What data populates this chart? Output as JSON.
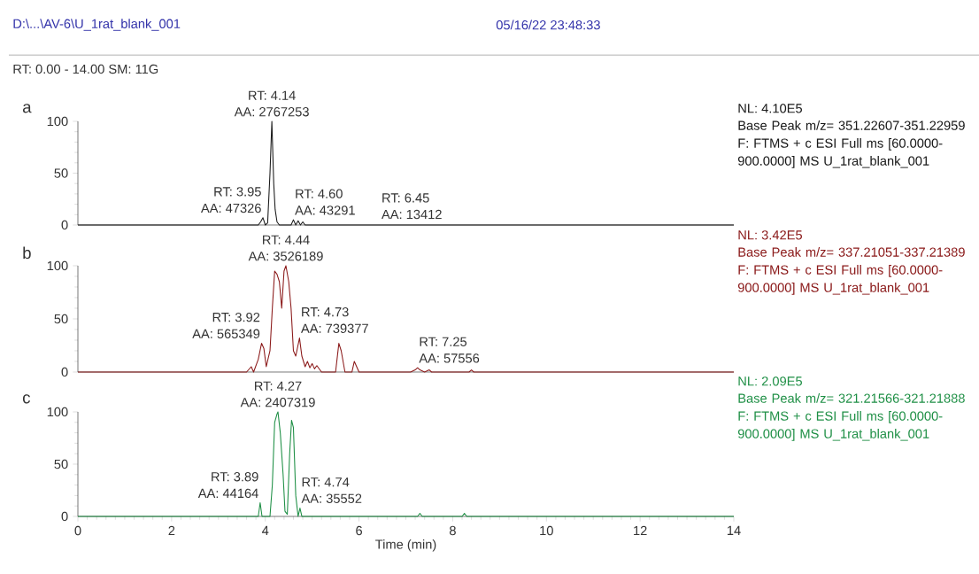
{
  "chart_data": [
    {
      "type": "line",
      "title": "a",
      "xlim": [
        0,
        14
      ],
      "ylim": [
        0,
        100
      ],
      "yticks": [
        0,
        50,
        100
      ],
      "tick_labels": "y",
      "series": [
        {
          "color": "#1a1a1a",
          "x": [
            0,
            3.85,
            3.9,
            3.95,
            4.0,
            4.05,
            4.1,
            4.14,
            4.18,
            4.21,
            4.25,
            4.3,
            4.55,
            4.6,
            4.65,
            4.7,
            4.75,
            4.8,
            4.85,
            14
          ],
          "values": [
            0,
            0,
            3,
            7,
            0,
            2,
            50,
            100,
            40,
            15,
            3,
            0,
            0,
            5,
            0,
            4,
            0,
            3,
            0,
            0
          ]
        }
      ],
      "annotations": [
        "D:\\...\\AV-6\\U_1rat_blank_001",
        "05/16/22 23:48:33",
        "RT:  0.00 - 14.00   SM:  11G",
        {
          "text": "RT: 3.95",
          "x": 3.95,
          "y": 7
        },
        {
          "text": "AA: 47326",
          "x": 3.95,
          "y": 7
        },
        {
          "text": "RT: 4.14",
          "x": 4.14,
          "y": 100
        },
        {
          "text": "AA: 2767253",
          "x": 4.14,
          "y": 100
        },
        {
          "text": "RT: 4.60",
          "x": 4.6,
          "y": 5
        },
        {
          "text": "AA: 43291",
          "x": 4.6,
          "y": 5
        },
        {
          "text": "RT: 6.45",
          "x": 6.45,
          "y": 1
        },
        {
          "text": "AA: 13412",
          "x": 6.45,
          "y": 1
        },
        "NL: 4.10E5",
        "Base Peak m/z= 351.22607-351.22959 F: FTMS + c ESI Full ms [60.0000-900.0000] MS U_1rat_blank_001"
      ]
    },
    {
      "type": "line",
      "title": "b",
      "xlim": [
        0,
        14
      ],
      "ylim": [
        0,
        100
      ],
      "yticks": [
        0,
        50,
        100
      ],
      "tick_labels": "y",
      "series": [
        {
          "color": "#8b1a1a",
          "x": [
            0,
            3.6,
            3.7,
            3.75,
            3.85,
            3.92,
            3.97,
            4.02,
            4.1,
            4.15,
            4.2,
            4.25,
            4.3,
            4.35,
            4.4,
            4.44,
            4.5,
            4.55,
            4.6,
            4.65,
            4.73,
            4.78,
            4.85,
            4.9,
            4.95,
            5.0,
            5.05,
            5.1,
            5.2,
            5.3,
            5.5,
            5.57,
            5.62,
            5.7,
            5.85,
            5.9,
            5.95,
            6.0,
            7.1,
            7.2,
            7.25,
            7.3,
            7.4,
            7.5,
            7.55,
            8.35,
            8.4,
            8.45,
            14
          ],
          "values": [
            0,
            0,
            5,
            0,
            12,
            27,
            22,
            5,
            20,
            60,
            95,
            92,
            85,
            60,
            95,
            100,
            85,
            60,
            20,
            15,
            32,
            15,
            5,
            10,
            4,
            8,
            3,
            6,
            0,
            0,
            0,
            27,
            20,
            0,
            0,
            10,
            5,
            0,
            0,
            2,
            4,
            2,
            0,
            2,
            0,
            0,
            2,
            0,
            0
          ]
        }
      ],
      "annotations": [
        {
          "text": "RT: 3.92",
          "x": 3.92,
          "y": 27
        },
        {
          "text": "AA: 565349",
          "x": 3.92,
          "y": 27
        },
        {
          "text": "RT: 4.44",
          "x": 4.44,
          "y": 100
        },
        {
          "text": "AA: 3526189",
          "x": 4.44,
          "y": 100
        },
        {
          "text": "RT: 4.73",
          "x": 4.73,
          "y": 32
        },
        {
          "text": "AA: 739377",
          "x": 4.73,
          "y": 32
        },
        {
          "text": "RT: 7.25",
          "x": 7.25,
          "y": 4
        },
        {
          "text": "AA: 57556",
          "x": 7.25,
          "y": 4
        },
        "NL: 3.42E5",
        "Base Peak m/z= 337.21051-337.21389 F: FTMS + c ESI Full ms [60.0000-900.0000] MS U_1rat_blank_001"
      ]
    },
    {
      "type": "line",
      "title": "c",
      "xlabel": "Time (min)",
      "xlim": [
        0,
        14
      ],
      "xticks": [
        0,
        2,
        4,
        6,
        8,
        10,
        12,
        14
      ],
      "ylim": [
        0,
        100
      ],
      "yticks": [
        0,
        50,
        100
      ],
      "series": [
        {
          "color": "#1e8f45",
          "x": [
            0,
            3.85,
            3.89,
            3.93,
            4.1,
            4.15,
            4.2,
            4.25,
            4.27,
            4.32,
            4.38,
            4.42,
            4.47,
            4.52,
            4.56,
            4.6,
            4.65,
            4.7,
            4.74,
            4.78,
            7.25,
            7.3,
            7.35,
            8.2,
            8.25,
            8.3,
            14
          ],
          "values": [
            0,
            0,
            13,
            0,
            0,
            30,
            90,
            98,
            100,
            80,
            40,
            5,
            2,
            60,
            92,
            85,
            20,
            0,
            8,
            0,
            0,
            3,
            0,
            0,
            3,
            0,
            0
          ]
        }
      ],
      "annotations": [
        {
          "text": "RT: 3.89",
          "x": 3.89,
          "y": 13
        },
        {
          "text": "AA: 44164",
          "x": 3.89,
          "y": 13
        },
        {
          "text": "RT: 4.27",
          "x": 4.27,
          "y": 100
        },
        {
          "text": "AA: 2407319",
          "x": 4.27,
          "y": 100
        },
        {
          "text": "RT: 4.74",
          "x": 4.74,
          "y": 8
        },
        {
          "text": "AA: 35552",
          "x": 4.74,
          "y": 8
        },
        "NL: 2.09E5",
        "Base Peak m/z= 321.21566-321.21888 F: FTMS + c ESI Full ms [60.0000-900.0000] MS U_1rat_blank_001"
      ]
    }
  ]
}
